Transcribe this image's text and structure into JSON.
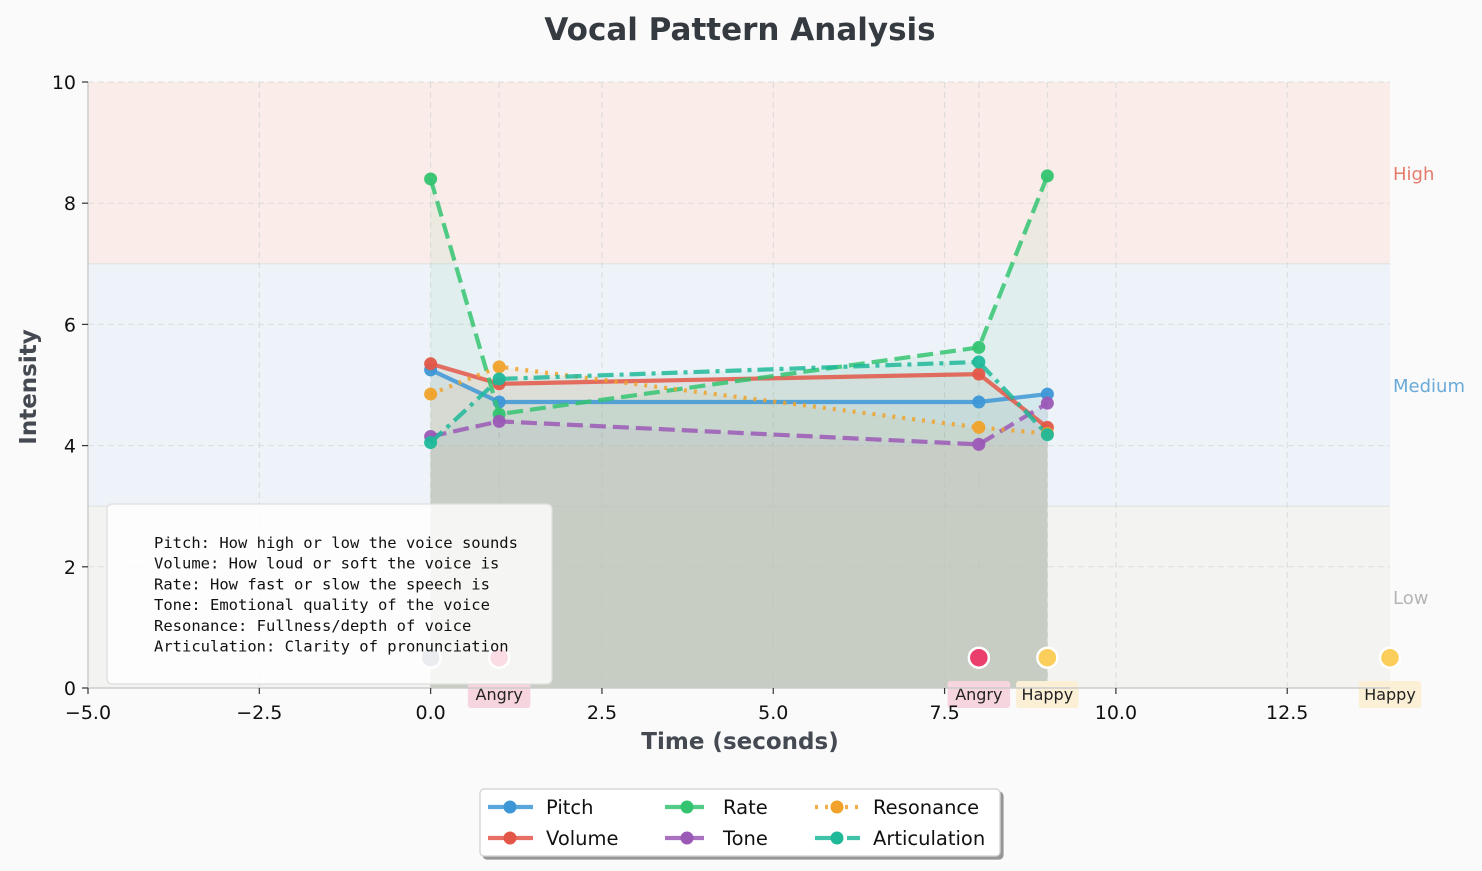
{
  "chart_data": {
    "type": "line",
    "title": "Vocal Pattern Analysis",
    "xlabel": "Time (seconds)",
    "ylabel": "Intensity",
    "xlim": [
      -5,
      14
    ],
    "ylim": [
      0,
      10
    ],
    "x_ticks": [
      -5.0,
      -2.5,
      0.0,
      2.5,
      5.0,
      7.5,
      10.0,
      12.5
    ],
    "x_tick_labels": [
      "−5.0",
      "−2.5",
      "0.0",
      "2.5",
      "5.0",
      "7.5",
      "10.0",
      "12.5"
    ],
    "y_ticks": [
      0,
      2,
      4,
      6,
      8,
      10
    ],
    "y_tick_labels": [
      "0",
      "2",
      "4",
      "6",
      "8",
      "10"
    ],
    "grid": true,
    "legend_position": "bottom-center",
    "bands": [
      {
        "label": "High",
        "from": 7,
        "to": 10,
        "fill": "#f9ece9",
        "label_color": "#e57b6d",
        "label_y": 8.5
      },
      {
        "label": "Medium",
        "from": 3,
        "to": 7,
        "fill": "#edf3f8",
        "label_color": "#6aaad9",
        "label_y": 5.0
      },
      {
        "label": "Low",
        "from": 0,
        "to": 3,
        "fill": "#f3f3f1",
        "label_color": "#b5b5b5",
        "label_y": 1.5
      }
    ],
    "series": [
      {
        "name": "Pitch",
        "color": "#3d97d6",
        "dash": "solid",
        "x": [
          0,
          1,
          8,
          9
        ],
        "values": [
          5.25,
          4.72,
          4.72,
          4.85
        ]
      },
      {
        "name": "Volume",
        "color": "#e35748",
        "dash": "solid",
        "x": [
          0,
          1,
          8,
          9
        ],
        "values": [
          5.35,
          5.02,
          5.18,
          4.3
        ]
      },
      {
        "name": "Rate",
        "color": "#34c471",
        "dash": "dashed",
        "x": [
          0,
          1,
          8,
          9
        ],
        "values": [
          8.4,
          4.52,
          5.62,
          8.45
        ]
      },
      {
        "name": "Tone",
        "color": "#9b59b6",
        "dash": "dashed",
        "x": [
          0,
          1,
          8,
          9
        ],
        "values": [
          4.15,
          4.4,
          4.02,
          4.7
        ]
      },
      {
        "name": "Resonance",
        "color": "#f0a22a",
        "dash": "dotted",
        "x": [
          0,
          1,
          8,
          9
        ],
        "values": [
          4.85,
          5.3,
          4.3,
          4.2
        ]
      },
      {
        "name": "Articulation",
        "color": "#1fb99a",
        "dash": "dashdot",
        "x": [
          0,
          1,
          8,
          9
        ],
        "values": [
          4.05,
          5.1,
          5.38,
          4.18
        ]
      }
    ],
    "emotion_markers": [
      {
        "x": 0,
        "y": 0.5,
        "label": "",
        "color": "#8d98ab"
      },
      {
        "x": 1,
        "y": 0.5,
        "label": "Angry",
        "color": "#ea3f6d",
        "label_bg": "#f7d5de"
      },
      {
        "x": 8,
        "y": 0.5,
        "label": "Angry",
        "color": "#ea3f6d",
        "label_bg": "#f7d5de"
      },
      {
        "x": 9,
        "y": 0.5,
        "label": "Happy",
        "color": "#fbcd5a",
        "label_bg": "#fbefd6"
      },
      {
        "x": 14,
        "y": 0.5,
        "label": "Happy",
        "color": "#fbcd5a",
        "label_bg": "#fbefd6"
      }
    ],
    "shaded_region": {
      "x_from": 0,
      "x_to": 9,
      "fill": "#c9ccc2"
    },
    "annotation_box": [
      "Pitch: How high or low the voice sounds",
      "Volume: How loud or soft the voice is",
      "Rate: How fast or slow the speech is",
      "Tone: Emotional quality of the voice",
      "Resonance: Fullness/depth of voice",
      "Articulation: Clarity of pronunciation"
    ]
  }
}
